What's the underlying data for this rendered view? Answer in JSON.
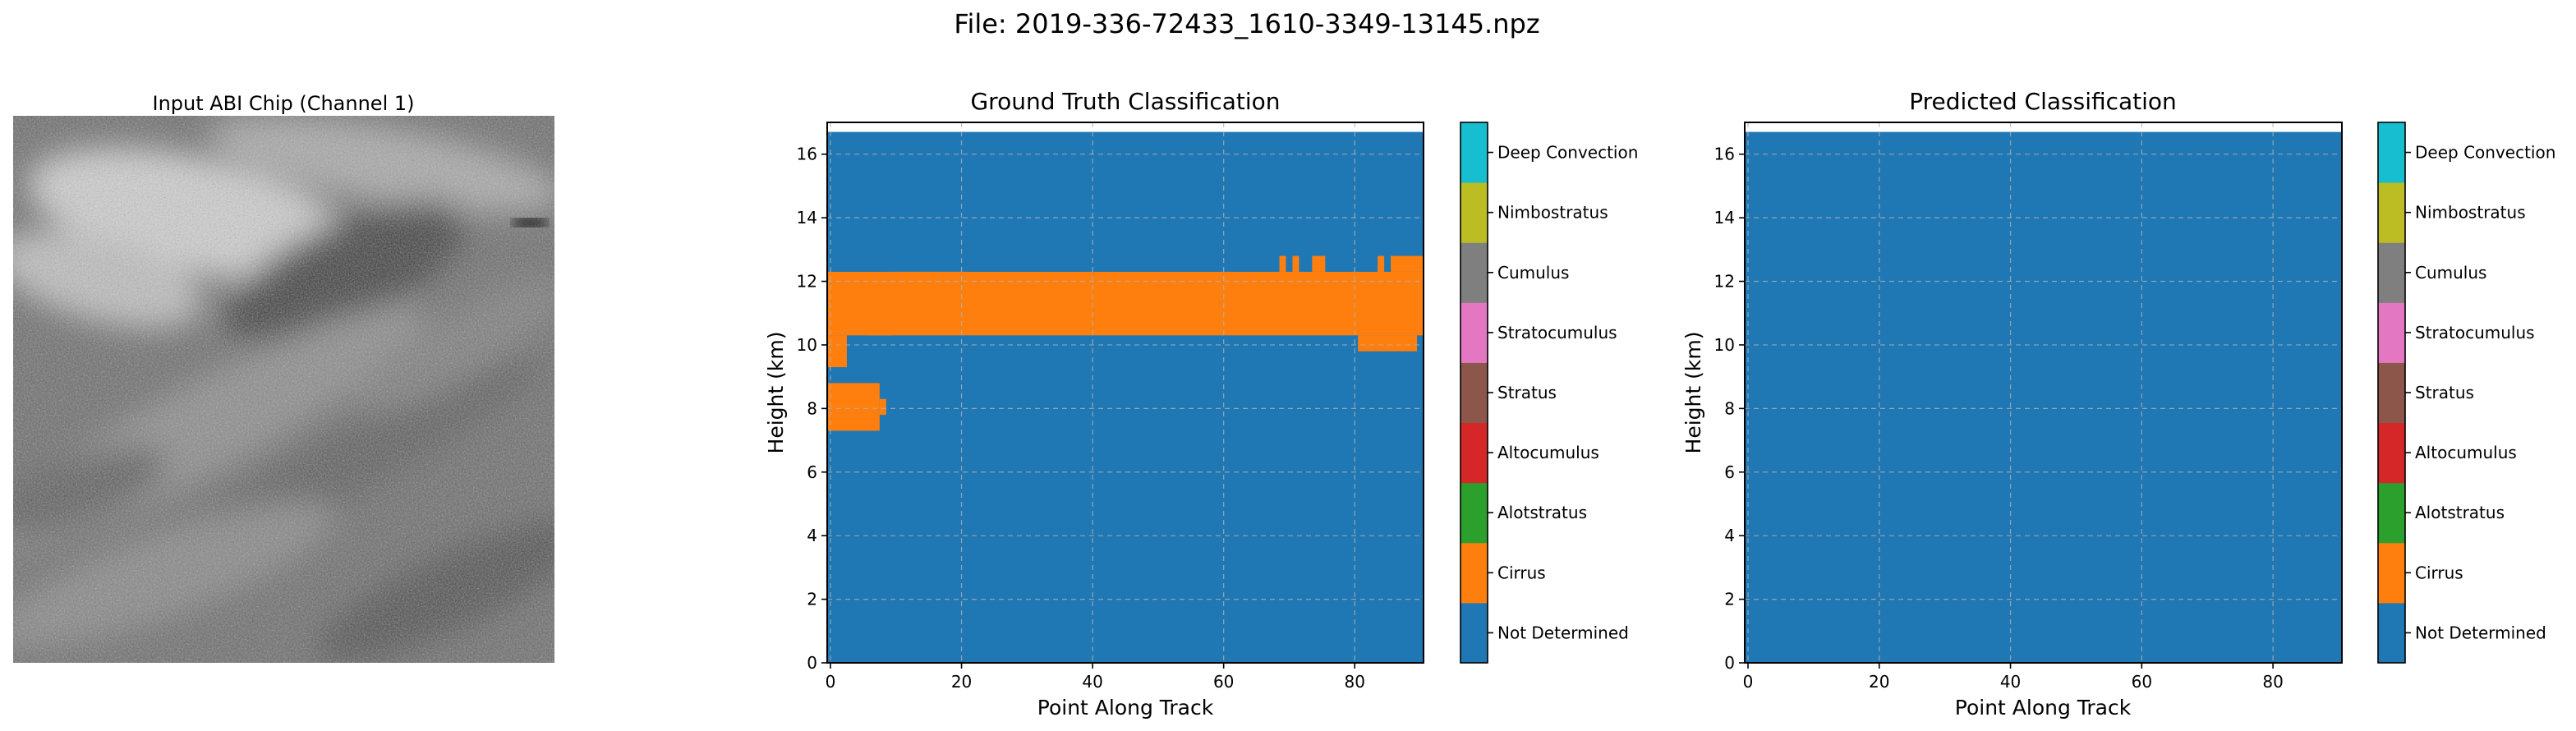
{
  "suptitle": "File: 2019-336-72433_1610-3349-13145.npz",
  "chip": {
    "title": "Input ABI Chip (Channel 1)"
  },
  "classes": [
    {
      "label": "Not Determined",
      "color": "#1f77b4"
    },
    {
      "label": "Cirrus",
      "color": "#ff7f0e"
    },
    {
      "label": "Alotstratus",
      "color": "#2ca02c"
    },
    {
      "label": "Altocumulus",
      "color": "#d62728"
    },
    {
      "label": "Stratus",
      "color": "#8c564b"
    },
    {
      "label": "Stratocumulus",
      "color": "#e377c2"
    },
    {
      "label": "Cumulus",
      "color": "#7f7f7f"
    },
    {
      "label": "Nimbostratus",
      "color": "#bcbd22"
    },
    {
      "label": "Deep Convection",
      "color": "#17becf"
    }
  ],
  "chart_data": [
    {
      "type": "heatmap",
      "title": "Ground Truth Classification",
      "xlabel": "Point Along Track",
      "ylabel": "Height (km)",
      "xlim": [
        -0.5,
        90.5
      ],
      "ylim": [
        0,
        17
      ],
      "xticks": [
        0,
        20,
        40,
        60,
        80
      ],
      "yticks": [
        0,
        2,
        4,
        6,
        8,
        10,
        12,
        14,
        16
      ],
      "grid": true,
      "data_top_km": 16.7,
      "background_class": "Not Determined",
      "regions": [
        {
          "class": "Cirrus",
          "x": [
            -0.5,
            90.5
          ],
          "y": [
            10.3,
            12.3
          ]
        },
        {
          "class": "Cirrus",
          "x": [
            -0.5,
            2.5
          ],
          "y": [
            9.3,
            10.3
          ]
        },
        {
          "class": "Cirrus",
          "x": [
            5.5,
            9.5
          ],
          "y": [
            10.3,
            10.7
          ]
        },
        {
          "class": "Cirrus",
          "x": [
            9.5,
            20.5
          ],
          "y": [
            10.7,
            12.3
          ]
        },
        {
          "class": "Cirrus",
          "x": [
            -0.5,
            7.5
          ],
          "y": [
            7.3,
            8.8
          ]
        },
        {
          "class": "Cirrus",
          "x": [
            7.5,
            8.5
          ],
          "y": [
            7.8,
            8.3
          ]
        },
        {
          "class": "Cirrus",
          "x": [
            80.5,
            89.5
          ],
          "y": [
            9.8,
            10.3
          ]
        },
        {
          "class": "Cirrus",
          "x": [
            68.5,
            69.5
          ],
          "y": [
            12.3,
            12.8
          ]
        },
        {
          "class": "Cirrus",
          "x": [
            70.5,
            71.5
          ],
          "y": [
            12.3,
            12.8
          ]
        },
        {
          "class": "Cirrus",
          "x": [
            73.5,
            75.5
          ],
          "y": [
            12.3,
            12.8
          ]
        },
        {
          "class": "Cirrus",
          "x": [
            83.5,
            84.5
          ],
          "y": [
            12.3,
            12.8
          ]
        },
        {
          "class": "Cirrus",
          "x": [
            85.5,
            90.5
          ],
          "y": [
            12.3,
            12.8
          ]
        }
      ]
    },
    {
      "type": "heatmap",
      "title": "Predicted Classification",
      "xlabel": "Point Along Track",
      "ylabel": "Height (km)",
      "xlim": [
        -0.5,
        90.5
      ],
      "ylim": [
        0,
        17
      ],
      "xticks": [
        0,
        20,
        40,
        60,
        80
      ],
      "yticks": [
        0,
        2,
        4,
        6,
        8,
        10,
        12,
        14,
        16
      ],
      "grid": true,
      "data_top_km": 16.7,
      "background_class": "Not Determined",
      "regions": []
    }
  ]
}
